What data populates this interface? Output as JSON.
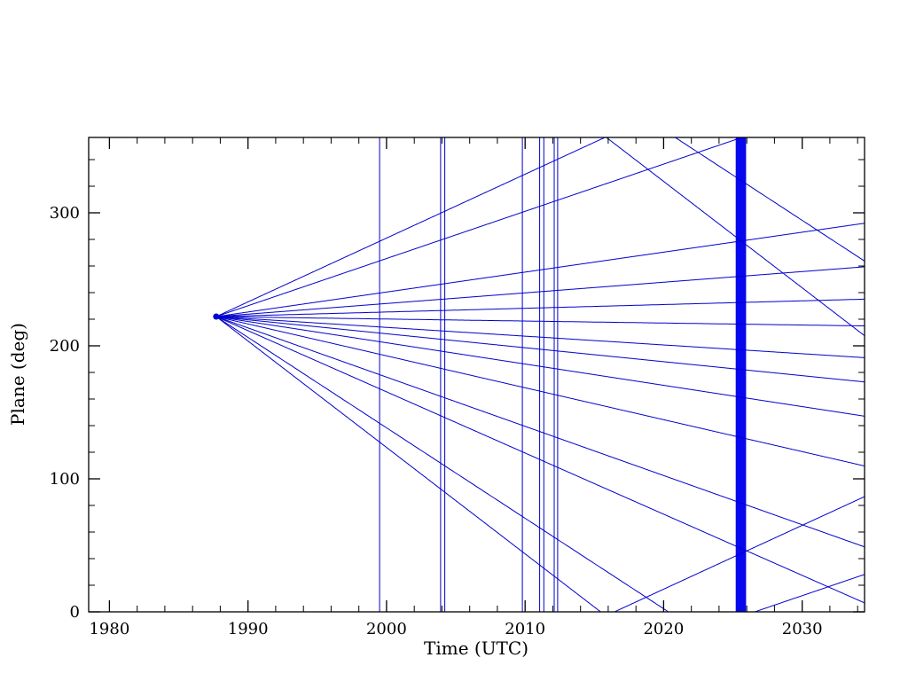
{
  "chart_data": {
    "type": "line",
    "title": "",
    "xlabel": "Time (UTC)",
    "ylabel": "Plane (deg)",
    "xlim": [
      1978.5,
      2034.5
    ],
    "ylim": [
      0,
      356.7
    ],
    "x_major_ticks": [
      1980,
      1990,
      2000,
      2010,
      2020,
      2030
    ],
    "x_minor_step": 2,
    "y_major_ticks": [
      0,
      100,
      200,
      300
    ],
    "y_minor_step": 20,
    "grid": false,
    "legend": "none",
    "line_color": "#0000cc",
    "axis_color": "#000000",
    "fan": {
      "apex": {
        "t": 1987.7,
        "plane": 222
      },
      "slopes_deg_per_year": [
        4.8,
        3.55,
        1.5,
        0.8,
        0.28,
        -0.15,
        -0.66,
        -1.05,
        -1.6,
        -2.4,
        -3.7,
        -4.6,
        -6.8,
        -8.0
      ],
      "wrap_mod": 360
    },
    "vertical_lines": [
      1999.5,
      2003.9,
      2004.2,
      2009.8,
      2011.05,
      2011.35,
      2012.1,
      2012.35
    ],
    "band": {
      "start": 2025.2,
      "end": 2025.95,
      "color": "#0808ee"
    }
  }
}
